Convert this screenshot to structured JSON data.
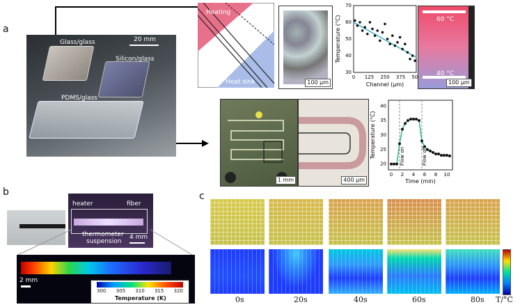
{
  "panels": {
    "a": {
      "label": "a",
      "photo": {
        "labels": [
          "Glass/glass",
          "Silicon/glass",
          "PDMS/glass"
        ],
        "scale": "20 mm"
      },
      "diagram": {
        "heating": "Heating",
        "heat_sink": "Heat sink"
      },
      "micrograph_scale": "100 µm",
      "gradient": {
        "top": "60 °C",
        "bottom": "40 °C",
        "scale": "100 µm"
      },
      "chip_image_scale": "1 mm",
      "zoom_scale": "400 µm"
    },
    "b": {
      "label": "b",
      "labels": {
        "heater": "heater",
        "fiber": "fiber",
        "thermo": "thermometer",
        "susp": "suspension"
      },
      "scale1": "4 mm",
      "scale2": "2 mm",
      "colorbar": {
        "ticks": [
          "300",
          "305",
          "310",
          "315",
          "320"
        ],
        "title": "Temperature (K)"
      }
    },
    "c": {
      "label": "c",
      "times": [
        "0s",
        "20s",
        "40s",
        "60s",
        "80s"
      ],
      "unit": "T/°C"
    }
  },
  "chart_data": [
    {
      "type": "scatter",
      "xlabel": "Channel (µm)",
      "ylabel": "Temperature (°C)",
      "xticks": [
        "0",
        "125",
        "250",
        "375",
        "500"
      ],
      "yticks": [
        "30",
        "40",
        "50",
        "60",
        "70"
      ],
      "xlim": [
        0,
        500
      ],
      "ylim": [
        30,
        70
      ],
      "points": [
        [
          10,
          61
        ],
        [
          30,
          58
        ],
        [
          50,
          60
        ],
        [
          70,
          55
        ],
        [
          90,
          57
        ],
        [
          110,
          53
        ],
        [
          130,
          60
        ],
        [
          150,
          56
        ],
        [
          170,
          52
        ],
        [
          190,
          55
        ],
        [
          210,
          49
        ],
        [
          230,
          54
        ],
        [
          250,
          59
        ],
        [
          270,
          50
        ],
        [
          290,
          47
        ],
        [
          310,
          52
        ],
        [
          330,
          46
        ],
        [
          350,
          48
        ],
        [
          370,
          51
        ],
        [
          390,
          44
        ],
        [
          410,
          47
        ],
        [
          430,
          42
        ],
        [
          450,
          38
        ],
        [
          470,
          40
        ],
        [
          490,
          37
        ]
      ],
      "fit": [
        [
          0,
          60
        ],
        [
          500,
          39
        ]
      ],
      "fit_color": "#3ab0c8"
    },
    {
      "type": "line",
      "xlabel": "Time (min)",
      "ylabel": "Temperature (°C)",
      "xticks": [
        "0",
        "2",
        "4",
        "6",
        "8",
        "10"
      ],
      "yticks": [
        "20",
        "25",
        "30",
        "35",
        "40"
      ],
      "xlim": [
        -0.5,
        11
      ],
      "ylim": [
        18,
        42
      ],
      "annotations": [
        {
          "text": "Flow on",
          "x": 1.5
        },
        {
          "text": "Flow off",
          "x": 5.5
        }
      ],
      "x": [
        0,
        0.5,
        1,
        1.5,
        2,
        2.5,
        3,
        3.5,
        4,
        4.5,
        5,
        5.5,
        6,
        6.5,
        7,
        7.5,
        8,
        8.5,
        9,
        9.5,
        10,
        10.5
      ],
      "y": [
        20,
        20,
        20,
        27,
        32,
        34,
        35,
        35.5,
        35.5,
        35.5,
        35,
        28,
        26,
        25,
        24.5,
        24,
        23.5,
        23.5,
        23,
        23,
        23,
        22.8
      ],
      "color": "#2fb38a"
    }
  ]
}
